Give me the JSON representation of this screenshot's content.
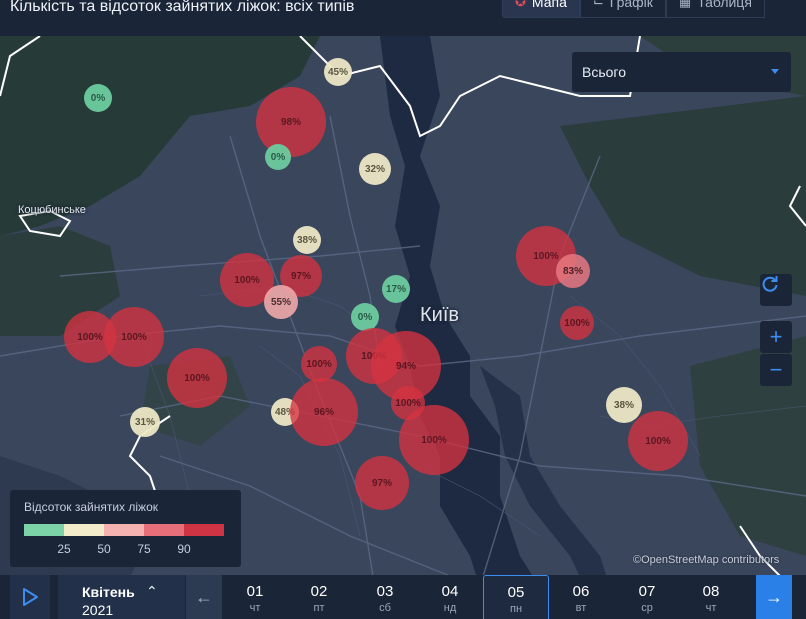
{
  "header": {
    "title": "Кількість та відсоток зайнятих ліжок: всіх типів",
    "tabs": [
      {
        "label": "Мапа",
        "icon": "map-icon",
        "active": true
      },
      {
        "label": "Графік",
        "icon": "line-chart-icon",
        "active": false
      },
      {
        "label": "Таблиця",
        "icon": "table-icon",
        "active": false
      }
    ]
  },
  "map": {
    "city_label": "Київ",
    "town_label": "Коцюбинське",
    "attribution": "©OpenStreetMap contributors",
    "markers": [
      {
        "label": "45%",
        "level": "cream"
      },
      {
        "label": "0%",
        "level": "green"
      },
      {
        "label": "98%",
        "level": "high"
      },
      {
        "label": "0%",
        "level": "green"
      },
      {
        "label": "32%",
        "level": "cream"
      },
      {
        "label": "38%",
        "level": "cream"
      },
      {
        "label": "100%",
        "level": "high"
      },
      {
        "label": "97%",
        "level": "high"
      },
      {
        "label": "55%",
        "level": "warm"
      },
      {
        "label": "17%",
        "level": "green"
      },
      {
        "label": "0%",
        "level": "green"
      },
      {
        "label": "100%",
        "level": "high"
      },
      {
        "label": "83%",
        "level": "mid"
      },
      {
        "label": "100%",
        "level": "high"
      },
      {
        "label": "100%",
        "level": "high"
      },
      {
        "label": "100%",
        "level": "high"
      },
      {
        "label": "100%",
        "level": "high"
      },
      {
        "label": "100%",
        "level": "high"
      },
      {
        "label": "94%",
        "level": "high"
      },
      {
        "label": "100%",
        "level": "high"
      },
      {
        "label": "48%",
        "level": "cream"
      },
      {
        "label": "96%",
        "level": "high"
      },
      {
        "label": "100%",
        "level": "high"
      },
      {
        "label": "100%",
        "level": "high"
      },
      {
        "label": "31%",
        "level": "cream"
      },
      {
        "label": "38%",
        "level": "cream"
      },
      {
        "label": "100%",
        "level": "high"
      },
      {
        "label": "97%",
        "level": "high"
      }
    ]
  },
  "filter": {
    "selected": "Всього"
  },
  "controls": {
    "refresh_icon": "refresh-icon",
    "zoom_in": "+",
    "zoom_out": "−"
  },
  "legend": {
    "title": "Відсоток зайнятих ліжок",
    "colors": [
      "#7dd3a8",
      "#f2eccb",
      "#f4b3b0",
      "#e76f7a",
      "#cf3444"
    ],
    "ticks": [
      "25",
      "50",
      "75",
      "90"
    ]
  },
  "timeline": {
    "month": "Квітень",
    "year": "2021",
    "days": [
      {
        "day": "01",
        "weekday": "чт",
        "selected": false
      },
      {
        "day": "02",
        "weekday": "пт",
        "selected": false
      },
      {
        "day": "03",
        "weekday": "сб",
        "selected": false
      },
      {
        "day": "04",
        "weekday": "нд",
        "selected": false
      },
      {
        "day": "05",
        "weekday": "пн",
        "selected": true
      },
      {
        "day": "06",
        "weekday": "вт",
        "selected": false
      },
      {
        "day": "07",
        "weekday": "ср",
        "selected": false
      },
      {
        "day": "08",
        "weekday": "чт",
        "selected": false
      }
    ]
  }
}
